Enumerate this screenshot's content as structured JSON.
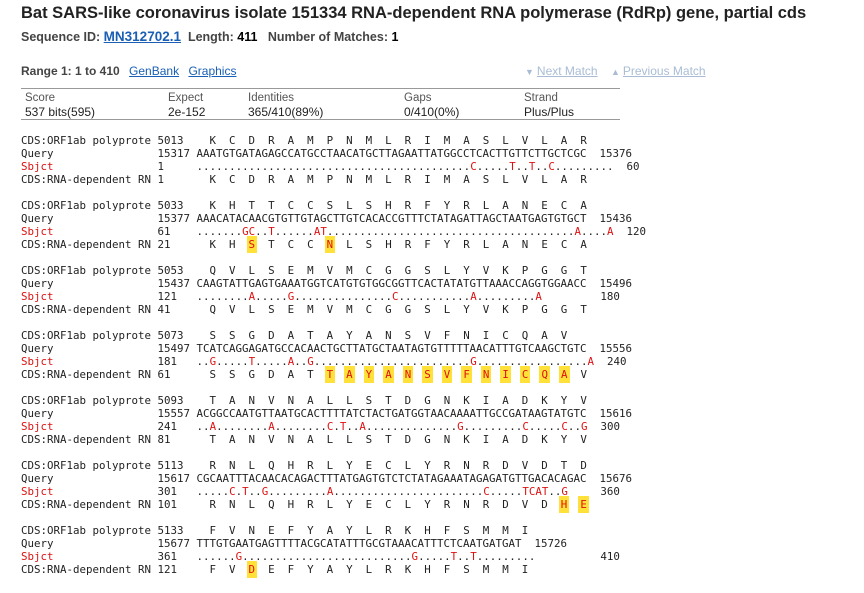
{
  "title": "Bat SARS-like coronavirus isolate 151334 RNA-dependent RNA polymerase (RdRp) gene, partial cds",
  "meta": {
    "seq_label": "Sequence ID:",
    "seq_id": "MN312702.1",
    "len_label": "Length:",
    "len_value": "411",
    "matches_label": "Number of Matches:",
    "matches_value": "1"
  },
  "range": {
    "label": "Range 1: 1 to 410",
    "genbank": "GenBank",
    "graphics": "Graphics",
    "next": "Next Match",
    "prev": "Previous Match"
  },
  "stats": {
    "score_h": "Score",
    "score_v": "537 bits(595)",
    "expect_h": "Expect",
    "expect_v": "2e-152",
    "ident_h": "Identities",
    "ident_v": "365/410(89%)",
    "gaps_h": "Gaps",
    "gaps_v": "0/410(0%)",
    "strand_h": "Strand",
    "strand_v": "Plus/Plus"
  },
  "alignment": {
    "label_cds_q": "CDS:ORF1ab polyprote",
    "label_query": "Query",
    "label_sbjct": "Sbjct",
    "label_cds_s": "CDS:RNA-dependent RN",
    "blocks": [
      {
        "cq_num": "5013",
        "cq_aa": "K  C  D  R  A  M  P  N  M  L  R  I  M  A  S  L  V  L  A  R",
        "q_start": "15317",
        "q_seq": "AAATGTGATAGAGCCATGCCTAACATGCTTAGAATTATGGCCTCACTTGTTCTTGCTCGC",
        "q_end": "15376",
        "s_start": "1",
        "s_seq": "..........................................C.....T..T..C.........",
        "s_end": "60",
        "cs_num": "1",
        "cs_aa": "K  C  D  R  A  M  P  N  M  L  R  I  M  A  S  L  V  L  A  R"
      },
      {
        "cq_num": "5033",
        "cq_aa": "K  H  T  T  C  C  S  L  S  H  R  F  Y  R  L  A  N  E  C  A",
        "q_start": "15377",
        "q_seq": "AAACATACAACGTGTTGTAGCTTGTCACACCGTTTCTATAGATTAGCTAATGAGTGTGCT",
        "q_end": "15436",
        "s_start": "61",
        "s_seq": ".......GC..T......AT......................................A....A",
        "s_end": "120",
        "cs_num": "21",
        "cs_aa": "K  H  S  T  C  C  N  L  S  H  R  F  Y  R  L  A  N  E  C  A"
      },
      {
        "cq_num": "5053",
        "cq_aa": "Q  V  L  S  E  M  V  M  C  G  G  S  L  Y  V  K  P  G  G  T",
        "q_start": "15437",
        "q_seq": "CAAGTATTGAGTGAAATGGTCATGTGTGGCGGTTCACTATATGTTAAACCAGGTGGAACC",
        "q_end": "15496",
        "s_start": "121",
        "s_seq": "........A.....G...............C...........A.........A",
        "s_end": "180",
        "cs_num": "41",
        "cs_aa": "Q  V  L  S  E  M  V  M  C  G  G  S  L  Y  V  K  P  G  G  T"
      },
      {
        "cq_num": "5073",
        "cq_aa": "S  S  G  D  A  T  A  Y  A  N  S  V  F  N  I  C  Q  A  V",
        "q_start": "15497",
        "q_seq": "TCATCAGGAGATGCCACAACTGCTTATGCTAATAGTGTTTTTAACATTTGTCAAGCTGTC",
        "q_end": "15556",
        "s_start": "181",
        "s_seq": "..G.....T.....A..G........................G.................A",
        "s_end": "240",
        "cs_num": "61",
        "cs_aa": "S  S  G  D  A  T  T  A  Y  A  N  S  V  F  N  I  C  Q  A  V"
      },
      {
        "cq_num": "5093",
        "cq_aa": "T  A  N  V  N  A  L  L  S  T  D  G  N  K  I  A  D  K  Y  V",
        "q_start": "15557",
        "q_seq": "ACGGCCAATGTTAATGCACTTTTATCTACTGATGGTAACAAAATTGCCGATAAGTATGTC",
        "q_end": "15616",
        "s_start": "241",
        "s_seq": "..A........A........C.T..A..............G.........C.....C..G",
        "s_end": "300",
        "cs_num": "81",
        "cs_aa": "T  A  N  V  N  A  L  L  S  T  D  G  N  K  I  A  D  K  Y  V"
      },
      {
        "cq_num": "5113",
        "cq_aa": "R  N  L  Q  H  R  L  Y  E  C  L  Y  R  N  R  D  V  D  T  D",
        "q_start": "15617",
        "q_seq": "CGCAATTTACAACACAGACTTTATGAGTGTCTCTATAGAAATAGAGATGTTGACACAGAC",
        "q_end": "15676",
        "s_start": "301",
        "s_seq": ".....C.T..G.........A.......................C.....TCAT..G",
        "s_end": "360",
        "cs_num": "101",
        "cs_aa": "R  N  L  Q  H  R  L  Y  E  C  L  Y  R  N  R  D  V  D  H  E"
      },
      {
        "cq_num": "5133",
        "cq_aa": "F  V  N  E  F  Y  A  Y  L  R  K  H  F  S  M  M  I",
        "q_start": "15677",
        "q_seq": "TTTGTGAATGAGTTTTACGCATATTTGCGTAAACATTTCTCAATGATGAT",
        "q_end": "15726",
        "s_start": "361",
        "s_seq": "......G..........................G.....T..T.........",
        "s_end": "410",
        "cs_num": "121",
        "cs_aa": "F  V  D  E  F  Y  A  Y  L  R  K  H  F  S  M  M  I"
      }
    ]
  },
  "colors": {
    "link": "#1a5fb4",
    "mismatch": "#d11",
    "highlight": "#ffe13a"
  }
}
